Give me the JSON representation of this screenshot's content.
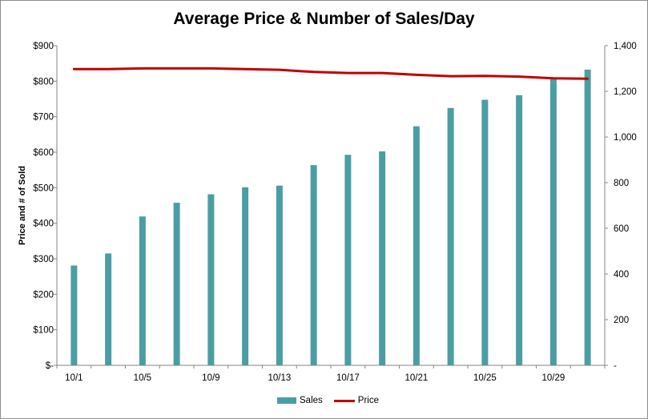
{
  "chart_data": {
    "type": "bar+line",
    "title": "Average Price & Number of Sales/Day",
    "ylabel_left": "Price and # of Sold",
    "ylabel_right": "",
    "xlabel": "",
    "y_left": {
      "lim": [
        0,
        900
      ],
      "ticks": [
        "$-",
        "$100",
        "$200",
        "$300",
        "$400",
        "$500",
        "$600",
        "$700",
        "$800",
        "$900"
      ]
    },
    "y_right": {
      "lim": [
        0,
        1400
      ],
      "ticks": [
        "-",
        "200",
        "400",
        "600",
        "800",
        "1,000",
        "1,200",
        "1,400"
      ]
    },
    "x_ticks": [
      "10/1",
      "10/5",
      "10/9",
      "10/13",
      "10/17",
      "10/21",
      "10/25",
      "10/29"
    ],
    "categories": [
      "10/1",
      "10/3",
      "10/5",
      "10/7",
      "10/9",
      "10/11",
      "10/13",
      "10/15",
      "10/17",
      "10/19",
      "10/21",
      "10/23",
      "10/25",
      "10/27",
      "10/29",
      "10/31"
    ],
    "series": [
      {
        "name": "Sales",
        "axis": "right",
        "kind": "bar",
        "color": "#4a9ea3",
        "values": [
          437,
          490,
          652,
          712,
          749,
          780,
          787,
          877,
          922,
          937,
          1047,
          1127,
          1163,
          1183,
          1252,
          1295
        ]
      },
      {
        "name": "Price",
        "axis": "left",
        "kind": "line",
        "color": "#c00000",
        "values": [
          834,
          834,
          836,
          836,
          836,
          834,
          832,
          826,
          823,
          823,
          818,
          814,
          815,
          813,
          808,
          807
        ]
      }
    ],
    "grid": false,
    "legend": "bottom"
  }
}
